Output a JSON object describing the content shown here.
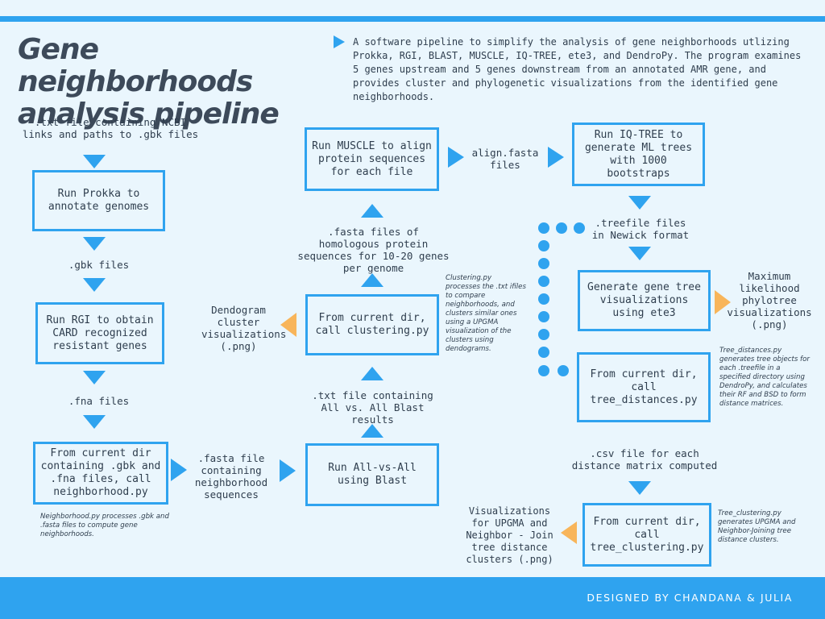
{
  "header": {
    "title": "Gene neighborhoods analysis pipeline",
    "description": "A software pipeline to simplify the analysis of gene neighborhoods utlizing Prokka, RGI, BLAST, MUSCLE, IQ-TREE, ete3, and DendroPy. The program examines 5 genes upstream and 5 genes downstream from an annotated AMR gene, and provides cluster and phylogenetic visualizations from the identified gene neighborhoods."
  },
  "col1": {
    "input": ".txt file containing NCBI links and paths to .gbk files",
    "prokka": "Run Prokka to annotate genomes",
    "gbk": ".gbk files",
    "rgi": "Run RGI to obtain CARD recognized resistant genes",
    "fna": ".fna files",
    "neighborhood": "From current dir containing .gbk and .fna files, call neighborhood.py",
    "neighborhood_note": "Neighborhood.py processes .gbk and .fasta files to compute gene neighborhoods."
  },
  "col2": {
    "fasta_file": ".fasta file containing neighborhood sequences",
    "blast": "Run All-vs-All using Blast",
    "blast_results": ".txt file containing All vs. All Blast results",
    "clustering": "From current dir, call clustering.py",
    "dendogram": "Dendogram cluster visualizations (.png)",
    "clustering_note": "Clustering.py processes the .txt ifiles to compare neighborhoods, and clusters similar ones using a UPGMA visualization of the clusters using dendograms.",
    "homologous": ".fasta files of homologous protein sequences for 10-20 genes per genome",
    "muscle": "Run MUSCLE to align protein sequences for each file",
    "align": "align.fasta files"
  },
  "col3": {
    "iqtree": "Run IQ-TREE to generate ML trees with 1000 bootstraps",
    "treefile": ".treefile files in Newick format",
    "gene_tree": "Generate gene tree visualizations using ete3",
    "ml_viz": "Maximum likelihood phylotree visualizations (.png)",
    "tree_distances": "From current dir, call tree_distances.py",
    "tree_distances_note": "Tree_distances.py generates tree objects for each .treefile in a specified directory using DendroPy, and calculates their RF and BSD to form distance matrices.",
    "csv": ".csv file for each distance matrix computed",
    "tree_clustering": "From current dir, call tree_clustering.py",
    "tree_clustering_viz": "Visualizations for UPGMA and Neighbor - Join tree distance clusters (.png)",
    "tree_clustering_note": "Tree_clustering.py generates UPGMA and Neighbor-Joining tree distance clusters."
  },
  "footer": {
    "credit": "DESIGNED BY CHANDANA & JULIA"
  },
  "colors": {
    "blue": "#2fa3ef",
    "orange": "#f8b55a",
    "text": "#2f3e4e",
    "background": "#eaf6fd"
  }
}
